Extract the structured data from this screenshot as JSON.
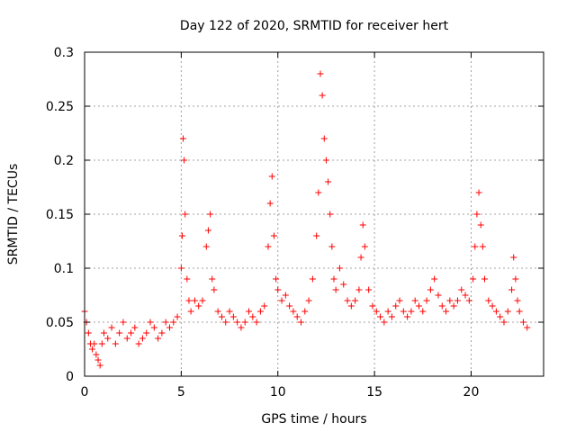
{
  "chart_data": {
    "type": "scatter",
    "title": "Day 122 of 2020, SRMTID for receiver hert",
    "xlabel": "GPS time / hours",
    "ylabel": "SRMTID / TECUs",
    "xlim": [
      0,
      23.75
    ],
    "ylim": [
      0,
      0.3
    ],
    "xticks": [
      0,
      5,
      10,
      15,
      20
    ],
    "xtick_labels": [
      "0",
      "5",
      "10",
      "15",
      "20"
    ],
    "yticks": [
      0,
      0.05,
      0.1,
      0.15,
      0.2,
      0.25,
      0.3
    ],
    "ytick_labels": [
      "0",
      "0.05",
      "0.1",
      "0.15",
      "0.2",
      "0.25",
      "0.3"
    ],
    "grid": true,
    "marker": "plus",
    "color": "#ff0000",
    "series": [
      {
        "name": "SRMTID",
        "x": [
          0.0,
          0.1,
          0.2,
          0.3,
          0.4,
          0.5,
          0.6,
          0.7,
          0.8,
          0.9,
          1.0,
          1.2,
          1.4,
          1.6,
          1.8,
          2.0,
          2.2,
          2.4,
          2.6,
          2.8,
          3.0,
          3.2,
          3.4,
          3.6,
          3.8,
          4.0,
          4.2,
          4.4,
          4.6,
          4.8,
          5.0,
          5.05,
          5.1,
          5.15,
          5.2,
          5.3,
          5.4,
          5.5,
          5.7,
          5.9,
          6.1,
          6.3,
          6.4,
          6.5,
          6.6,
          6.7,
          6.9,
          7.1,
          7.3,
          7.5,
          7.7,
          7.9,
          8.1,
          8.3,
          8.5,
          8.7,
          8.9,
          9.1,
          9.3,
          9.5,
          9.6,
          9.7,
          9.8,
          9.9,
          10.0,
          10.2,
          10.4,
          10.6,
          10.8,
          11.0,
          11.2,
          11.4,
          11.6,
          11.8,
          12.0,
          12.1,
          12.2,
          12.3,
          12.4,
          12.5,
          12.6,
          12.7,
          12.8,
          12.9,
          13.0,
          13.2,
          13.4,
          13.6,
          13.8,
          14.0,
          14.2,
          14.3,
          14.4,
          14.5,
          14.7,
          14.9,
          15.1,
          15.3,
          15.5,
          15.7,
          15.9,
          16.1,
          16.3,
          16.5,
          16.7,
          16.9,
          17.1,
          17.3,
          17.5,
          17.7,
          17.9,
          18.1,
          18.3,
          18.5,
          18.7,
          18.9,
          19.1,
          19.3,
          19.5,
          19.7,
          19.9,
          20.1,
          20.2,
          20.3,
          20.4,
          20.5,
          20.6,
          20.7,
          20.9,
          21.1,
          21.3,
          21.5,
          21.7,
          21.9,
          22.1,
          22.2,
          22.3,
          22.4,
          22.5,
          22.7,
          22.9
        ],
        "y": [
          0.06,
          0.05,
          0.04,
          0.03,
          0.025,
          0.03,
          0.02,
          0.015,
          0.01,
          0.03,
          0.04,
          0.035,
          0.045,
          0.03,
          0.04,
          0.05,
          0.035,
          0.04,
          0.045,
          0.03,
          0.035,
          0.04,
          0.05,
          0.045,
          0.035,
          0.04,
          0.05,
          0.045,
          0.05,
          0.055,
          0.1,
          0.13,
          0.22,
          0.2,
          0.15,
          0.09,
          0.07,
          0.06,
          0.07,
          0.065,
          0.07,
          0.12,
          0.135,
          0.15,
          0.09,
          0.08,
          0.06,
          0.055,
          0.05,
          0.06,
          0.055,
          0.05,
          0.045,
          0.05,
          0.06,
          0.055,
          0.05,
          0.06,
          0.065,
          0.12,
          0.16,
          0.185,
          0.13,
          0.09,
          0.08,
          0.07,
          0.075,
          0.065,
          0.06,
          0.055,
          0.05,
          0.06,
          0.07,
          0.09,
          0.13,
          0.17,
          0.28,
          0.26,
          0.22,
          0.2,
          0.18,
          0.15,
          0.12,
          0.09,
          0.08,
          0.1,
          0.085,
          0.07,
          0.065,
          0.07,
          0.08,
          0.11,
          0.14,
          0.12,
          0.08,
          0.065,
          0.06,
          0.055,
          0.05,
          0.06,
          0.055,
          0.065,
          0.07,
          0.06,
          0.055,
          0.06,
          0.07,
          0.065,
          0.06,
          0.07,
          0.08,
          0.09,
          0.075,
          0.065,
          0.06,
          0.07,
          0.065,
          0.07,
          0.08,
          0.075,
          0.07,
          0.09,
          0.12,
          0.15,
          0.17,
          0.14,
          0.12,
          0.09,
          0.07,
          0.065,
          0.06,
          0.055,
          0.05,
          0.06,
          0.08,
          0.11,
          0.09,
          0.07,
          0.06,
          0.05,
          0.045
        ]
      }
    ]
  }
}
